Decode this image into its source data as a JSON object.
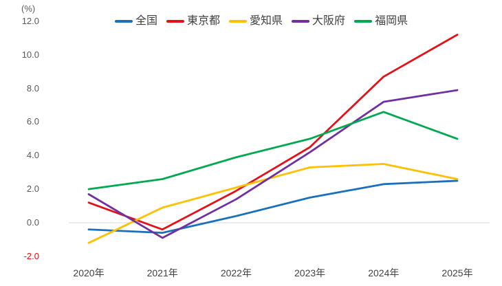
{
  "chart_data": {
    "type": "line",
    "title": "",
    "unit_label": "(%)",
    "xlabel": "",
    "ylabel": "(%)",
    "x": [
      "2020年",
      "2021年",
      "2022年",
      "2023年",
      "2024年",
      "2025年"
    ],
    "series": [
      {
        "name": "全国",
        "color": "#1a70ba",
        "values": [
          -0.4,
          -0.6,
          0.4,
          1.5,
          2.3,
          2.5
        ]
      },
      {
        "name": "東京都",
        "color": "#e2121a",
        "values": [
          1.2,
          -0.4,
          1.9,
          4.5,
          8.7,
          11.2
        ]
      },
      {
        "name": "愛知県",
        "color": "#ffc000",
        "values": [
          -1.2,
          0.9,
          2.1,
          3.3,
          3.5,
          2.6
        ]
      },
      {
        "name": "大阪府",
        "color": "#7030a0",
        "values": [
          1.7,
          -0.9,
          1.4,
          4.2,
          7.2,
          7.9
        ]
      },
      {
        "name": "福岡県",
        "color": "#00a950",
        "values": [
          2.0,
          2.6,
          3.9,
          5.0,
          6.6,
          5.0
        ]
      }
    ],
    "y_ticks": [
      12.0,
      10.0,
      8.0,
      6.0,
      4.0,
      2.0,
      0.0,
      -2.0
    ],
    "ylim": [
      -2.0,
      12.0
    ],
    "grid": "zero-line-only",
    "legend_position": "top",
    "axis_text_color": "#595959",
    "x_label_color": "#404040",
    "negative_tick_color": "#ff0000",
    "zero_line_color": "#d9d9d9"
  }
}
